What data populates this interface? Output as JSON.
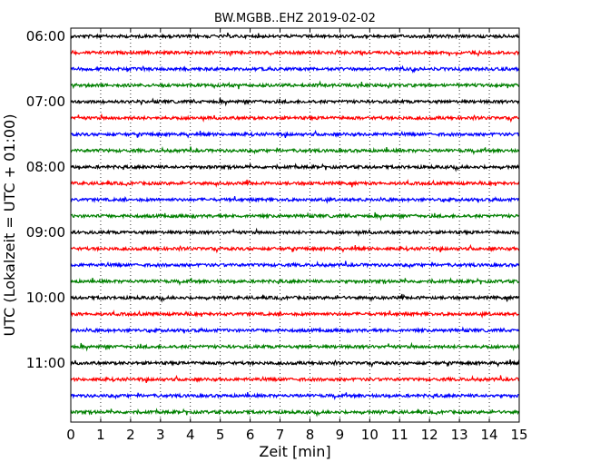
{
  "chart_data": {
    "type": "line",
    "title": "BW.MGBB..EHZ 2019-02-02",
    "xlabel": "Zeit  [min]",
    "ylabel": "UTC (Lokalzeit = UTC + 01:00)",
    "xlim": [
      0,
      15
    ],
    "x_ticks": [
      "0",
      "1",
      "2",
      "3",
      "4",
      "5",
      "6",
      "7",
      "8",
      "9",
      "10",
      "11",
      "12",
      "13",
      "14",
      "15"
    ],
    "y_ticks": [
      "06:00",
      "07:00",
      "08:00",
      "09:00",
      "10:00",
      "11:00"
    ],
    "grid": "vertical-dotted",
    "trace_colors": [
      "#000000",
      "#ff0000",
      "#0000ff",
      "#008000"
    ],
    "series": [
      {
        "start": "06:00",
        "color": "#000000"
      },
      {
        "start": "06:15",
        "color": "#ff0000"
      },
      {
        "start": "06:30",
        "color": "#0000ff"
      },
      {
        "start": "06:45",
        "color": "#008000"
      },
      {
        "start": "07:00",
        "color": "#000000"
      },
      {
        "start": "07:15",
        "color": "#ff0000"
      },
      {
        "start": "07:30",
        "color": "#0000ff"
      },
      {
        "start": "07:45",
        "color": "#008000"
      },
      {
        "start": "08:00",
        "color": "#000000"
      },
      {
        "start": "08:15",
        "color": "#ff0000"
      },
      {
        "start": "08:30",
        "color": "#0000ff"
      },
      {
        "start": "08:45",
        "color": "#008000"
      },
      {
        "start": "09:00",
        "color": "#000000"
      },
      {
        "start": "09:15",
        "color": "#ff0000"
      },
      {
        "start": "09:30",
        "color": "#0000ff"
      },
      {
        "start": "09:45",
        "color": "#008000"
      },
      {
        "start": "10:00",
        "color": "#000000"
      },
      {
        "start": "10:15",
        "color": "#ff0000"
      },
      {
        "start": "10:30",
        "color": "#0000ff"
      },
      {
        "start": "10:45",
        "color": "#008000"
      },
      {
        "start": "11:00",
        "color": "#000000"
      },
      {
        "start": "11:15",
        "color": "#ff0000"
      },
      {
        "start": "11:30",
        "color": "#0000ff"
      },
      {
        "start": "11:45",
        "color": "#008000"
      }
    ]
  }
}
